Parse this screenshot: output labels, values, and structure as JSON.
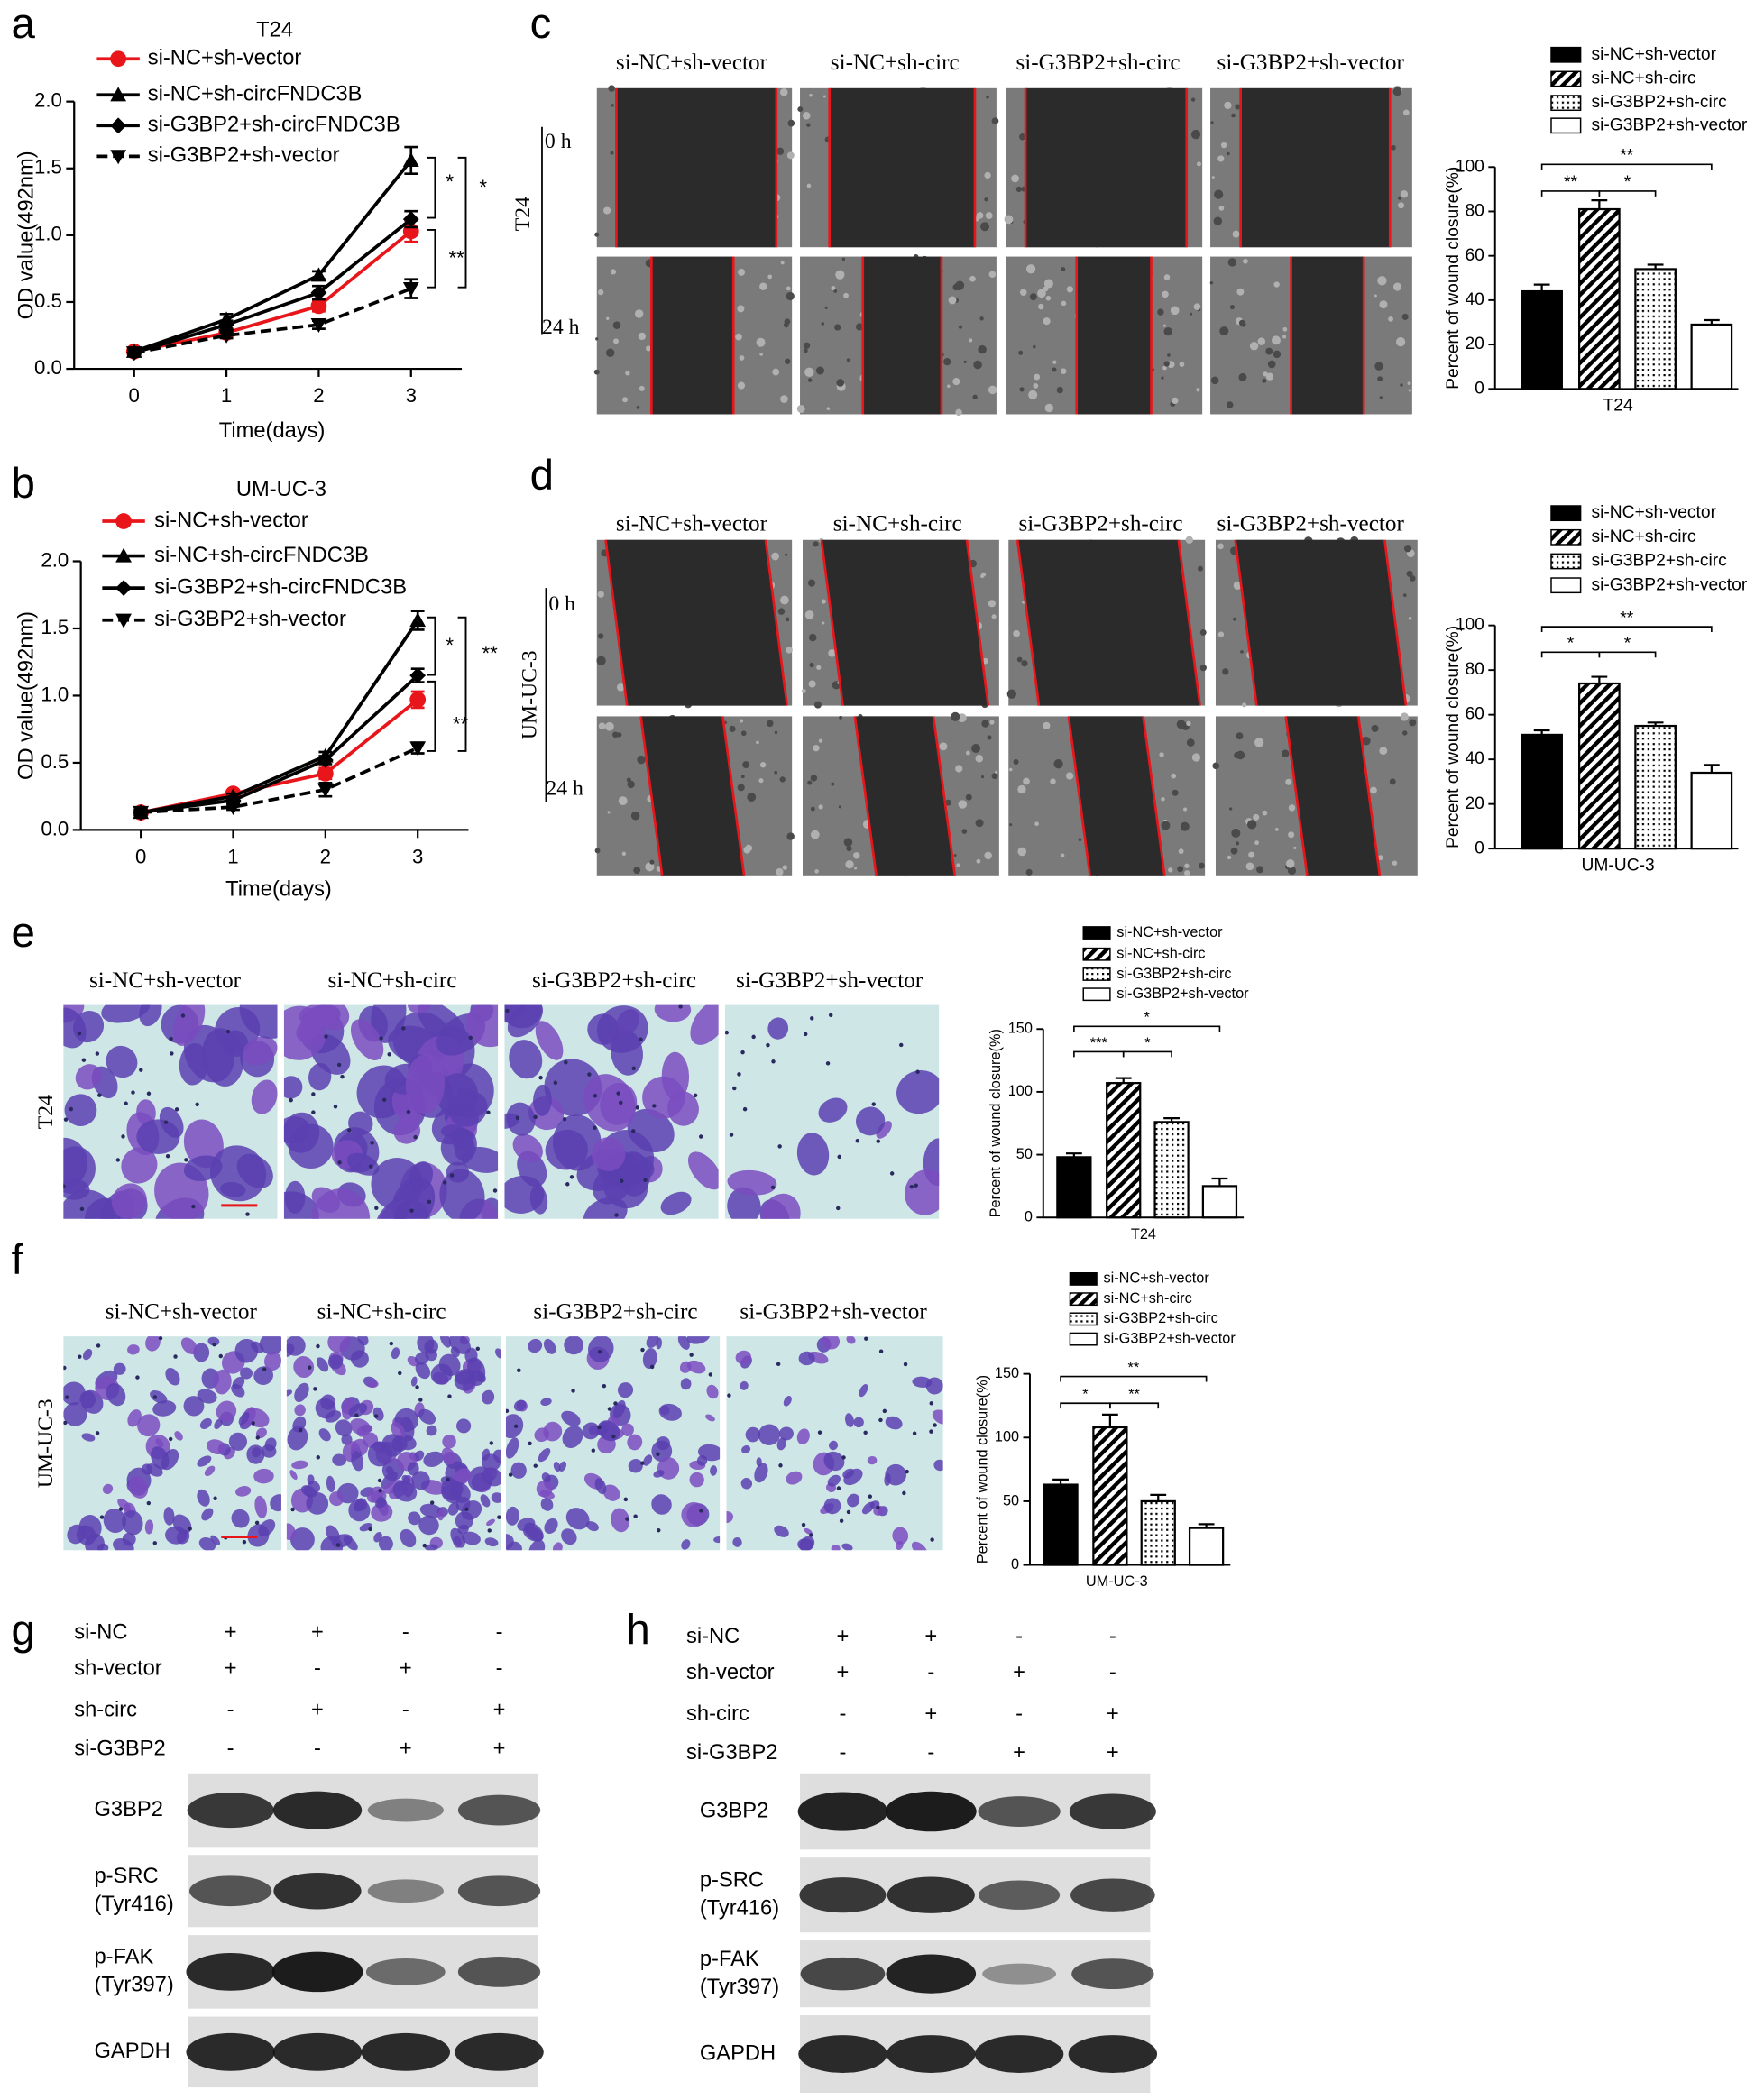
{
  "panel_labels": [
    "a",
    "b",
    "c",
    "d",
    "e",
    "f",
    "g",
    "h"
  ],
  "chart_data": [
    {
      "type": "line",
      "title": "T24",
      "xlabel": "Time(days)",
      "ylabel": "OD value(492nm)",
      "x": [
        0,
        1,
        2,
        3
      ],
      "xlim": [
        -0.65,
        3.55
      ],
      "xticks": [
        0,
        1,
        2,
        3
      ],
      "ylim": [
        0,
        2.0
      ],
      "yticks": [
        {
          "value": 0,
          "label": "0.0"
        },
        0.5,
        {
          "value": 1,
          "label": "1.0"
        },
        1.5,
        {
          "value": 2,
          "label": "2.0"
        }
      ],
      "series": [
        {
          "name": "si-NC+sh-vector",
          "color": "#e8161b",
          "marker": "circle",
          "line": "solid",
          "values": [
            0.13,
            0.27,
            0.47,
            1.03
          ],
          "errors": [
            0.02,
            0.03,
            0.04,
            0.08
          ]
        },
        {
          "name": "si-NC+sh-circFNDC3B",
          "color": "#000000",
          "marker": "triangle",
          "line": "solid",
          "values": [
            0.13,
            0.37,
            0.7,
            1.56
          ],
          "errors": [
            0.02,
            0.04,
            0.03,
            0.1
          ]
        },
        {
          "name": "si-G3BP2+sh-circFNDC3B",
          "color": "#000000",
          "marker": "diamond",
          "line": "solid",
          "values": [
            0.12,
            0.33,
            0.57,
            1.12
          ],
          "errors": [
            0.02,
            0.03,
            0.05,
            0.06
          ]
        },
        {
          "name": "si-G3BP2+sh-vector",
          "color": "#000000",
          "marker": "triangle-down",
          "line": "dashed",
          "values": [
            0.12,
            0.25,
            0.33,
            0.6
          ],
          "errors": [
            0.02,
            0.02,
            0.03,
            0.07
          ]
        }
      ],
      "annotations": [
        {
          "text": "*"
        },
        {
          "text": "*"
        },
        {
          "text": "**"
        }
      ]
    },
    {
      "type": "line",
      "title": "UM-UC-3",
      "xlabel": "Time(days)",
      "ylabel": "OD value(492nm)",
      "x": [
        0,
        1,
        2,
        3
      ],
      "xlim": [
        -0.65,
        3.55
      ],
      "xticks": [
        0,
        1,
        2,
        3
      ],
      "ylim": [
        0,
        2.0
      ],
      "yticks": [
        {
          "value": 0,
          "label": "0.0"
        },
        0.5,
        {
          "value": 1,
          "label": "1.0"
        },
        1.5,
        {
          "value": 2,
          "label": "2.0"
        }
      ],
      "series": [
        {
          "name": "si-NC+sh-vector",
          "color": "#e8161b",
          "marker": "circle",
          "line": "solid",
          "values": [
            0.13,
            0.27,
            0.42,
            0.97
          ],
          "errors": [
            0.02,
            0.02,
            0.04,
            0.06
          ]
        },
        {
          "name": "si-NC+sh-circFNDC3B",
          "color": "#000000",
          "marker": "triangle",
          "line": "solid",
          "values": [
            0.13,
            0.25,
            0.55,
            1.56
          ],
          "errors": [
            0.02,
            0.02,
            0.03,
            0.07
          ]
        },
        {
          "name": "si-G3BP2+sh-circFNDC3B",
          "color": "#000000",
          "marker": "diamond",
          "line": "solid",
          "values": [
            0.13,
            0.22,
            0.52,
            1.15
          ],
          "errors": [
            0.02,
            0.02,
            0.03,
            0.05
          ]
        },
        {
          "name": "si-G3BP2+sh-vector",
          "color": "#000000",
          "marker": "triangle-down",
          "line": "dashed",
          "values": [
            0.13,
            0.17,
            0.3,
            0.61
          ],
          "errors": [
            0.02,
            0.02,
            0.05,
            0.04
          ]
        }
      ],
      "annotations": [
        {
          "text": "*"
        },
        {
          "text": "**"
        },
        {
          "text": "**"
        }
      ]
    },
    {
      "type": "bar",
      "categories": [
        "T24"
      ],
      "ylabel": "Percent of wound closure(%)",
      "ylim": [
        0,
        100
      ],
      "yticks": [
        0,
        20,
        40,
        60,
        80,
        100
      ],
      "series": [
        {
          "name": "si-NC+sh-vector",
          "color": "#000000",
          "pattern": "solid",
          "values": [
            44
          ],
          "errors": [
            3
          ]
        },
        {
          "name": "si-NC+sh-circ",
          "color": "#000000",
          "pattern": "hatch",
          "values": [
            81
          ],
          "errors": [
            4
          ]
        },
        {
          "name": "si-G3BP2+sh-circ",
          "color": "#000000",
          "pattern": "dots",
          "values": [
            54
          ],
          "errors": [
            2
          ]
        },
        {
          "name": "si-G3BP2+sh-vector",
          "color": "#ffffff",
          "pattern": "solid",
          "values": [
            29
          ],
          "errors": [
            2
          ]
        }
      ],
      "annotations": [
        {
          "text": "**"
        },
        {
          "text": "**"
        },
        {
          "text": "*"
        }
      ]
    },
    {
      "type": "bar",
      "categories": [
        "UM-UC-3"
      ],
      "ylabel": "Percent of wound closure(%)",
      "ylim": [
        0,
        100
      ],
      "yticks": [
        0,
        20,
        40,
        60,
        80,
        100
      ],
      "series": [
        {
          "name": "si-NC+sh-vector",
          "color": "#000000",
          "pattern": "solid",
          "values": [
            51
          ],
          "errors": [
            2
          ]
        },
        {
          "name": "si-NC+sh-circ",
          "color": "#000000",
          "pattern": "hatch",
          "values": [
            74
          ],
          "errors": [
            3
          ]
        },
        {
          "name": "si-G3BP2+sh-circ",
          "color": "#000000",
          "pattern": "dots",
          "values": [
            55
          ],
          "errors": [
            1.5
          ]
        },
        {
          "name": "si-G3BP2+sh-vector",
          "color": "#ffffff",
          "pattern": "solid",
          "values": [
            34
          ],
          "errors": [
            3.5
          ]
        }
      ],
      "annotations": [
        {
          "text": "**"
        },
        {
          "text": "*"
        },
        {
          "text": "*"
        }
      ]
    },
    {
      "type": "bar",
      "categories": [
        "T24"
      ],
      "ylabel": "Percent of wound closure(%)",
      "ylim": [
        0,
        150
      ],
      "yticks": [
        0,
        50,
        100,
        150
      ],
      "series": [
        {
          "name": "si-NC+sh-vector",
          "color": "#000000",
          "pattern": "solid",
          "values": [
            48
          ],
          "errors": [
            3
          ]
        },
        {
          "name": "si-NC+sh-circ",
          "color": "#000000",
          "pattern": "hatch",
          "values": [
            107
          ],
          "errors": [
            4
          ]
        },
        {
          "name": "si-G3BP2+sh-circ",
          "color": "#000000",
          "pattern": "dots",
          "values": [
            76
          ],
          "errors": [
            3
          ]
        },
        {
          "name": "si-G3BP2+sh-vector",
          "color": "#ffffff",
          "pattern": "solid",
          "values": [
            25
          ],
          "errors": [
            6
          ]
        }
      ],
      "annotations": [
        {
          "text": "*"
        },
        {
          "text": "***"
        },
        {
          "text": "*"
        }
      ]
    },
    {
      "type": "bar",
      "categories": [
        "UM-UC-3"
      ],
      "ylabel": "Percent of wound closure(%)",
      "ylim": [
        0,
        150
      ],
      "yticks": [
        0,
        50,
        100,
        150
      ],
      "series": [
        {
          "name": "si-NC+sh-vector",
          "color": "#000000",
          "pattern": "solid",
          "values": [
            63
          ],
          "errors": [
            4
          ]
        },
        {
          "name": "si-NC+sh-circ",
          "color": "#000000",
          "pattern": "hatch",
          "values": [
            108
          ],
          "errors": [
            10
          ]
        },
        {
          "name": "si-G3BP2+sh-circ",
          "color": "#000000",
          "pattern": "dots",
          "values": [
            50
          ],
          "errors": [
            5
          ]
        },
        {
          "name": "si-G3BP2+sh-vector",
          "color": "#ffffff",
          "pattern": "solid",
          "values": [
            29
          ],
          "errors": [
            3
          ]
        }
      ],
      "annotations": [
        {
          "text": "**"
        },
        {
          "text": "*"
        },
        {
          "text": "**"
        }
      ]
    }
  ],
  "wound_assays": [
    {
      "column_labels": [
        "si-NC+sh-vector",
        "si-NC+sh-circ",
        "si-G3BP2+sh-circ",
        "si-G3BP2+sh-vector"
      ],
      "row_labels": [
        "0 h",
        "24 h"
      ],
      "cell_line": "T24"
    },
    {
      "column_labels": [
        "si-NC+sh-vector",
        "si-NC+sh-circ",
        "si-G3BP2+sh-circ",
        "si-G3BP2+sh-vector"
      ],
      "row_labels": [
        "0 h",
        "24 h"
      ],
      "cell_line": "UM-UC-3"
    }
  ],
  "transwell_assays": [
    {
      "column_labels": [
        "si-NC+sh-vector",
        "si-NC+sh-circ",
        "si-G3BP2+sh-circ",
        "si-G3BP2+sh-vector"
      ],
      "cell_line": "T24"
    },
    {
      "column_labels": [
        "si-NC+sh-vector",
        "si-NC+sh-circ",
        "si-G3BP2+sh-circ",
        "si-G3BP2+sh-vector"
      ],
      "cell_line": "UM-UC-3"
    }
  ],
  "western_blots": [
    {
      "conditions": [
        {
          "label": "si-NC",
          "signs": [
            "+",
            "+",
            "-",
            "-"
          ]
        },
        {
          "label": "sh-vector",
          "signs": [
            "+",
            "-",
            "+",
            "-"
          ]
        },
        {
          "label": "sh-circ",
          "signs": [
            "-",
            "+",
            "-",
            "+"
          ]
        },
        {
          "label": "si-G3BP2",
          "signs": [
            "-",
            "-",
            "+",
            "+"
          ]
        }
      ],
      "bands": [
        [
          "G3BP2"
        ],
        [
          "p-SRC",
          "(Tyr416)"
        ],
        [
          "p-FAK",
          "(Tyr397)"
        ],
        [
          "GAPDH"
        ]
      ]
    },
    {
      "conditions": [
        {
          "label": "si-NC",
          "signs": [
            "+",
            "+",
            "-",
            "-"
          ]
        },
        {
          "label": "sh-vector",
          "signs": [
            "+",
            "-",
            "+",
            "-"
          ]
        },
        {
          "label": "sh-circ",
          "signs": [
            "-",
            "+",
            "-",
            "+"
          ]
        },
        {
          "label": "si-G3BP2",
          "signs": [
            "-",
            "-",
            "+",
            "+"
          ]
        }
      ],
      "bands": [
        [
          "G3BP2"
        ],
        [
          "p-SRC",
          "(Tyr416)"
        ],
        [
          "p-FAK",
          "(Tyr397)"
        ],
        [
          "GAPDH"
        ]
      ]
    }
  ]
}
